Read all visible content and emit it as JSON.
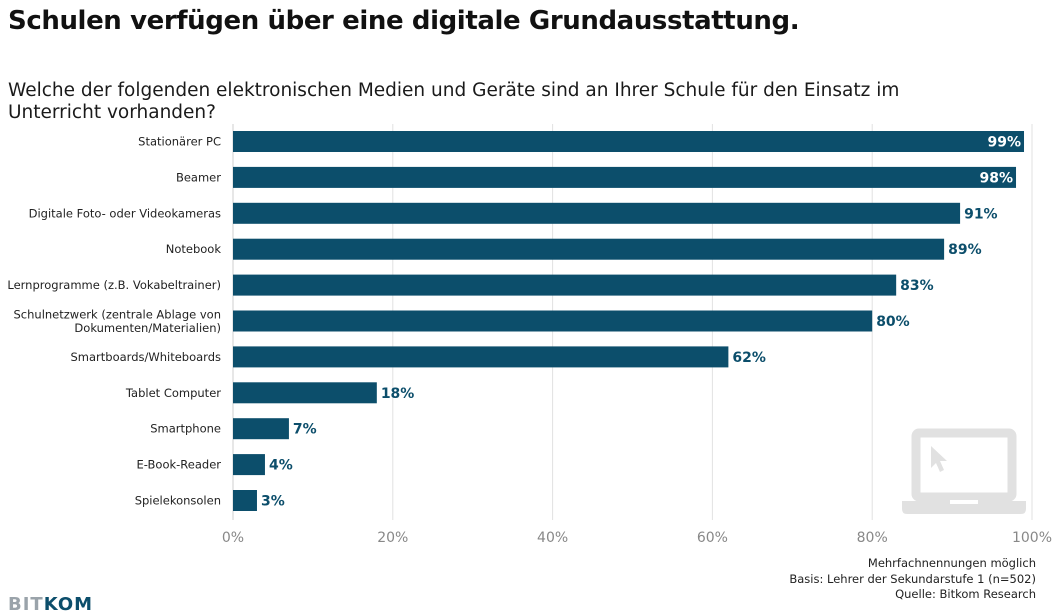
{
  "chart_data": {
    "type": "bar",
    "orientation": "horizontal",
    "title": "Schulen verfügen über eine digitale Grundausstattung.",
    "subtitle": "Welche der folgenden elektronischen Medien und Geräte sind an Ihrer Schule für den Einsatz im Unterricht vorhanden?",
    "categories": [
      [
        "Stationärer PC"
      ],
      [
        "Beamer"
      ],
      [
        "Digitale Foto- oder Videokameras"
      ],
      [
        "Notebook"
      ],
      [
        "Lernprogramme (z.B. Vokabeltrainer)"
      ],
      [
        "Schulnetzwerk (zentrale Ablage von",
        "Dokumenten/Materialien)"
      ],
      [
        "Smartboards/Whiteboards"
      ],
      [
        "Tablet Computer"
      ],
      [
        "Smartphone"
      ],
      [
        "E-Book-Reader"
      ],
      [
        "Spielekonsolen"
      ]
    ],
    "values": [
      99,
      98,
      91,
      89,
      83,
      80,
      62,
      18,
      7,
      4,
      3
    ],
    "value_labels": [
      "99%",
      "98%",
      "91%",
      "89%",
      "83%",
      "80%",
      "62%",
      "18%",
      "7%",
      "4%",
      "3%"
    ],
    "xlim": [
      0,
      100
    ],
    "xticks": [
      "0%",
      "20%",
      "40%",
      "60%",
      "80%",
      "100%"
    ],
    "grid": true,
    "bar_color": "#0c4e6b"
  },
  "footer": {
    "notes": [
      "Mehrfachnennungen möglich",
      "Basis: Lehrer der Sekundarstufe 1 (n=502)",
      "Quelle: Bitkom Research"
    ]
  },
  "brand": {
    "light": "BIT",
    "dark": "KOM"
  },
  "icons": {
    "watermark": "laptop-icon"
  }
}
